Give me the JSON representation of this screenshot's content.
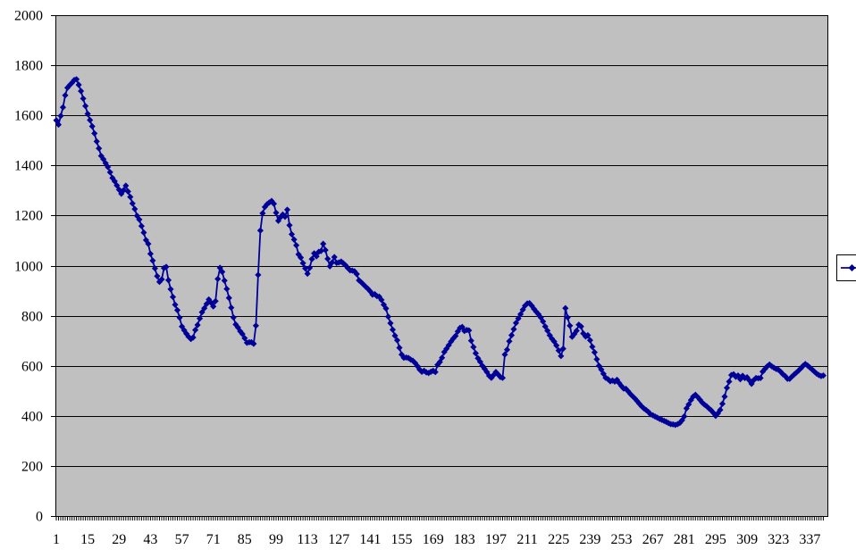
{
  "chart_data": {
    "type": "line",
    "title": "",
    "xlabel": "",
    "ylabel": "",
    "grid": true,
    "legend_position": "right",
    "legend_text": "",
    "marker": "diamond",
    "plot_bg_color": "#c0c0c0",
    "outer_bg_color": "#ffffff",
    "grid_color": "#000000",
    "axis_color": "#000000",
    "series_color": "#000099",
    "ylim": [
      0,
      2000
    ],
    "ytick_step": 200,
    "ytick_labels": [
      "0",
      "200",
      "400",
      "600",
      "800",
      "1000",
      "1200",
      "1400",
      "1600",
      "1800",
      "2000"
    ],
    "xtick_labels": [
      "1",
      "15",
      "29",
      "43",
      "57",
      "71",
      "85",
      "99",
      "113",
      "127",
      "141",
      "155",
      "169",
      "183",
      "197",
      "211",
      "225",
      "239",
      "253",
      "267",
      "281",
      "295",
      "309",
      "323",
      "337"
    ],
    "xtick_label_interval": 14,
    "n_points": 343,
    "x_start": 1,
    "series": [
      {
        "name": "",
        "values": [
          1580,
          1563,
          1598,
          1632,
          1680,
          1710,
          1721,
          1730,
          1741,
          1744,
          1722,
          1697,
          1667,
          1637,
          1606,
          1581,
          1556,
          1528,
          1496,
          1468,
          1438,
          1425,
          1409,
          1394,
          1373,
          1350,
          1337,
          1320,
          1303,
          1287,
          1301,
          1319,
          1296,
          1274,
          1248,
          1226,
          1199,
          1184,
          1158,
          1132,
          1102,
          1087,
          1047,
          1020,
          989,
          958,
          935,
          945,
          990,
          995,
          942,
          906,
          875,
          844,
          822,
          792,
          757,
          742,
          728,
          716,
          707,
          713,
          743,
          763,
          789,
          814,
          830,
          847,
          865,
          852,
          837,
          858,
          947,
          991,
          975,
          940,
          907,
          871,
          832,
          793,
          765,
          753,
          738,
          727,
          710,
          692,
          694,
          694,
          688,
          760,
          963,
          1140,
          1209,
          1234,
          1245,
          1252,
          1258,
          1247,
          1211,
          1179,
          1193,
          1204,
          1195,
          1223,
          1161,
          1125,
          1104,
          1081,
          1045,
          1032,
          1010,
          989,
          968,
          991,
          1026,
          1049,
          1037,
          1055,
          1058,
          1087,
          1062,
          1027,
          997,
          1013,
          1034,
          1011,
          1013,
          1016,
          1009,
          1001,
          990,
          981,
          980,
          977,
          966,
          941,
          933,
          924,
          915,
          907,
          897,
          884,
          886,
          878,
          876,
          863,
          844,
          829,
          796,
          770,
          744,
          720,
          702,
          672,
          645,
          632,
          633,
          631,
          625,
          620,
          611,
          599,
          585,
          576,
          580,
          574,
          571,
          576,
          580,
          575,
          604,
          615,
          632,
          655,
          668,
          682,
          697,
          709,
          719,
          737,
          751,
          755,
          739,
          743,
          741,
          700,
          675,
          650,
          630,
          616,
          600,
          588,
          575,
          560,
          552,
          563,
          575,
          565,
          555,
          552,
          645,
          664,
          698,
          722,
          746,
          771,
          789,
          806,
          824,
          840,
          849,
          850,
          840,
          827,
          816,
          806,
          793,
          777,
          757,
          740,
          722,
          708,
          697,
          681,
          661,
          639,
          668,
          830,
          793,
          760,
          716,
          727,
          740,
          764,
          757,
          729,
          717,
          722,
          702,
          676,
          654,
          626,
          600,
          585,
          568,
          552,
          546,
          538,
          541,
          537,
          544,
          531,
          519,
          509,
          508,
          498,
          487,
          478,
          469,
          459,
          448,
          438,
          430,
          423,
          416,
          406,
          402,
          397,
          393,
          388,
          384,
          380,
          376,
          371,
          367,
          366,
          364,
          367,
          372,
          382,
          398,
          430,
          446,
          463,
          477,
          484,
          475,
          464,
          453,
          445,
          438,
          430,
          422,
          412,
          400,
          410,
          424,
          448,
          477,
          512,
          537,
          563,
          566,
          556,
          561,
          546,
          560,
          551,
          554,
          542,
          528,
          543,
          551,
          550,
          551,
          577,
          588,
          598,
          605,
          598,
          592,
          587,
          584,
          576,
          566,
          559,
          548,
          548,
          557,
          565,
          573,
          581,
          590,
          600,
          607,
          601,
          593,
          585,
          577,
          569,
          563,
          559,
          561
        ]
      }
    ]
  }
}
